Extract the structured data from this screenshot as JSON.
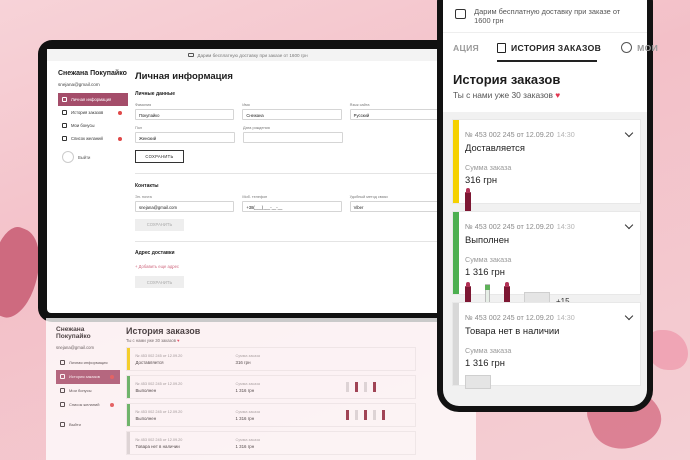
{
  "laptop": {
    "top_banner": "Дарим бесплатную доставку при заказе от 1600 грн",
    "user_name": "Снежана Покупайко",
    "email": "snejana@gmail.com",
    "menu": [
      {
        "label": "Личная информация",
        "icon": "user-icon",
        "active": true
      },
      {
        "label": "История заказов",
        "icon": "cart-icon",
        "badge": true
      },
      {
        "label": "Мои бонусы",
        "icon": "gift-icon"
      },
      {
        "label": "Список желаний",
        "icon": "heart-icon",
        "badge": true
      }
    ],
    "logout": "Выйти",
    "title": "Личная информация",
    "personal_heading": "Личные данные",
    "fields": [
      {
        "label": "Фамилия",
        "value": "Покупайко"
      },
      {
        "label": "Имя",
        "value": "Снежана"
      },
      {
        "label": "Язык сайта",
        "value": "Русский"
      },
      {
        "label": "Пол",
        "value": "Женский"
      },
      {
        "label": "Дата рождения",
        "value": ""
      }
    ],
    "save_button": "СОХРАНИТЬ",
    "contacts_heading": "Контакты",
    "contact_fields": [
      {
        "label": "Эл. почта",
        "value": "snejana@gmail.com"
      },
      {
        "label": "Моб. телефон",
        "value": "+38(___)___-__-__"
      },
      {
        "label": "Удобный метод связи",
        "value": "Viber"
      }
    ],
    "save_button_disabled": "СОХРАНИТЬ",
    "address_heading": "Адрес доставки",
    "add_address_link": "+ Добавить еще адрес"
  },
  "second_screen": {
    "user_name": "Снежана Покупайко",
    "email": "snejana@gmail.com",
    "menu": [
      {
        "label": "Личная информация"
      },
      {
        "label": "История заказов",
        "active": true
      },
      {
        "label": "Мои бонусы"
      },
      {
        "label": "Список желаний"
      }
    ],
    "logout": "Выйти",
    "title": "История заказов",
    "subtitle": "Ты с нами уже 30 заказов"
  },
  "phone": {
    "banner": "Дарим бесплатную доставку при заказе от 1600 грн",
    "tabs": {
      "left": "АЦИЯ",
      "active": "ИСТОРИЯ ЗАКАЗОВ",
      "right": "МОИ"
    },
    "title": "История заказов",
    "subtitle": "Ты с нами уже 30 заказов",
    "sum_label": "Сумма заказа",
    "orders": [
      {
        "number": "№ 453 002 245 от 12.09.20",
        "time": "14:30",
        "status": "Доставляется",
        "sum": "316 грн",
        "color": "#f5d100"
      },
      {
        "number": "№ 453 002 245 от 12.09.20",
        "time": "14:30",
        "status": "Выполнен",
        "sum": "1 316 грн",
        "color": "#4caf50",
        "more": "+15"
      },
      {
        "number": "№ 453 002 245 от 12.09.20",
        "time": "14:30",
        "status": "Товара нет в наличии",
        "sum": "1 316 грн",
        "color": "#d8d8d8"
      }
    ]
  },
  "colors": {
    "accent": "#a44d6a",
    "badge": "#e04848",
    "heart": "#e2364f"
  }
}
